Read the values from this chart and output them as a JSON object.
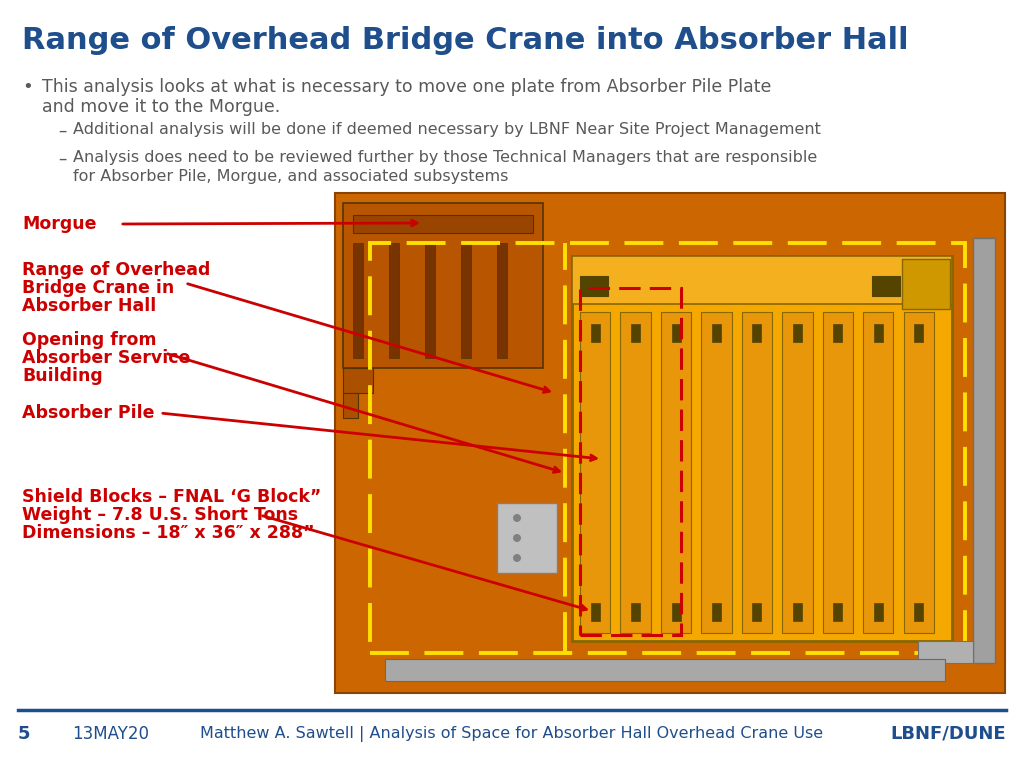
{
  "title": "Range of Overhead Bridge Crane into Absorber Hall",
  "title_color": "#1F4E8C",
  "title_fontsize": 22,
  "bg_color": "#FFFFFF",
  "bullet_color": "#595959",
  "bullet_text": "This analysis looks at what is necessary to move one plate from Absorber Pile Plate\nand move it to the Morgue.",
  "sub_bullet1": "Additional analysis will be done if deemed necessary by LBNF Near Site Project Management",
  "sub_bullet2": "Analysis does need to be reviewed further by those Technical Managers that are responsible\nfor Absorber Pile, Morgue, and associated subsystems",
  "footer_line_color": "#1F4E8C",
  "footer_page": "5",
  "footer_date": "13MAY20",
  "footer_center": "Matthew A. Sawtell | Analysis of Space for Absorber Hall Overhead Crane Use",
  "footer_right": "LBNF/DUNE",
  "footer_color": "#1F4E8C",
  "label_color": "#CC0000",
  "label_morgue": "Morgue",
  "label_crane": "Range of Overhead\nBridge Crane in\nAbsorber Hall",
  "label_opening": "Opening from\nAbsorber Service\nBuilding",
  "label_pile": "Absorber Pile",
  "label_shield": "Shield Blocks – FNAL ‘G Block”\nWeight – 7.8 U.S. Short Tons\nDimensions – 18″ x 36″ x 288”",
  "floor_color": "#CC6600",
  "pile_color": "#F5A800",
  "dashed_yellow": "#FFE000",
  "dashed_red": "#CC0000",
  "arrow_color": "#CC0000",
  "gray_color": "#909090"
}
